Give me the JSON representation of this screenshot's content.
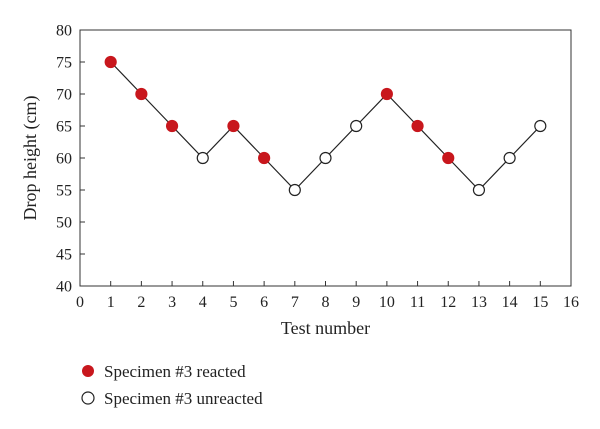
{
  "chart_data": {
    "type": "line",
    "xlabel": "Test number",
    "ylabel": "Drop height (cm)",
    "xlim": [
      0,
      16
    ],
    "ylim": [
      40,
      80
    ],
    "x_ticks": [
      0,
      1,
      2,
      3,
      4,
      5,
      6,
      7,
      8,
      9,
      10,
      11,
      12,
      13,
      14,
      15,
      16
    ],
    "y_ticks": [
      40,
      45,
      50,
      55,
      60,
      65,
      70,
      75,
      80
    ],
    "grid": false,
    "x": [
      1,
      2,
      3,
      4,
      5,
      6,
      7,
      8,
      9,
      10,
      11,
      12,
      13,
      14,
      15
    ],
    "y": [
      75,
      70,
      65,
      60,
      65,
      60,
      55,
      60,
      65,
      70,
      65,
      60,
      55,
      60,
      65
    ],
    "reacted": [
      true,
      true,
      true,
      false,
      true,
      true,
      false,
      false,
      false,
      true,
      true,
      true,
      false,
      false,
      false
    ],
    "legend": {
      "placement": "below",
      "entries": [
        {
          "label": "Specimen #3 reacted",
          "marker": "filled-circle",
          "color": "#c8171d"
        },
        {
          "label": "Specimen #3 unreacted",
          "marker": "open-circle",
          "color": "#ffffff"
        }
      ]
    },
    "colors": {
      "reacted": "#c8171d",
      "unreacted": "#ffffff",
      "line": "#222222"
    }
  }
}
